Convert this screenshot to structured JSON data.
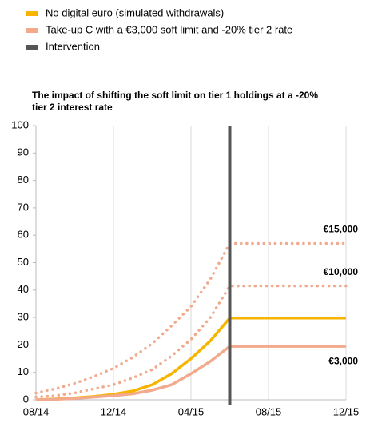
{
  "chart_data": {
    "type": "line",
    "title": "The impact of shifting the soft limit on tier 1 holdings at a -20% tier 2 interest rate",
    "x": [
      "08/14",
      "09/14",
      "10/14",
      "11/14",
      "12/14",
      "01/15",
      "02/15",
      "03/15",
      "04/15",
      "05/15",
      "06/15",
      "07/15",
      "08/15",
      "09/15",
      "10/15",
      "11/15",
      "12/15"
    ],
    "xticks": [
      "08/14",
      "12/14",
      "04/15",
      "08/15",
      "12/15"
    ],
    "ylim": [
      0,
      100
    ],
    "yticks": [
      0,
      10,
      20,
      30,
      40,
      50,
      60,
      70,
      80,
      90,
      100
    ],
    "grid": true,
    "series": [
      {
        "name": "No digital euro (simulated withdrawals)",
        "color": "#f7b500",
        "dash": false,
        "values": [
          0,
          0.3,
          0.7,
          1.2,
          2,
          3.2,
          5.5,
          9.5,
          15,
          21.5,
          29.8,
          29.8,
          29.8,
          29.8,
          29.8,
          29.8,
          29.8
        ]
      },
      {
        "name": "Take-up C with a €3,000 soft limit and -20% tier 2 rate",
        "label": "€3,000",
        "color": "#f2a98c",
        "dash": false,
        "values": [
          0,
          0.2,
          0.5,
          1,
          1.5,
          2.2,
          3.5,
          5.5,
          9.5,
          14,
          19.5,
          19.5,
          19.5,
          19.5,
          19.5,
          19.5,
          19.5
        ]
      },
      {
        "label": "€10,000",
        "color": "#f2a98c",
        "dash": true,
        "values": [
          1,
          1.5,
          2.5,
          4,
          5.5,
          8,
          11,
          16,
          22,
          30,
          41.5,
          41.5,
          41.5,
          41.5,
          41.5,
          41.5,
          41.5
        ]
      },
      {
        "label": "€15,000",
        "color": "#f2a98c",
        "dash": true,
        "values": [
          2.5,
          4,
          6,
          8.5,
          11.5,
          15.5,
          20.5,
          27,
          34,
          44,
          57,
          57,
          57,
          57,
          57,
          57,
          57
        ]
      }
    ],
    "intervention": {
      "name": "Intervention",
      "x": "06/15",
      "color": "#555555"
    }
  }
}
